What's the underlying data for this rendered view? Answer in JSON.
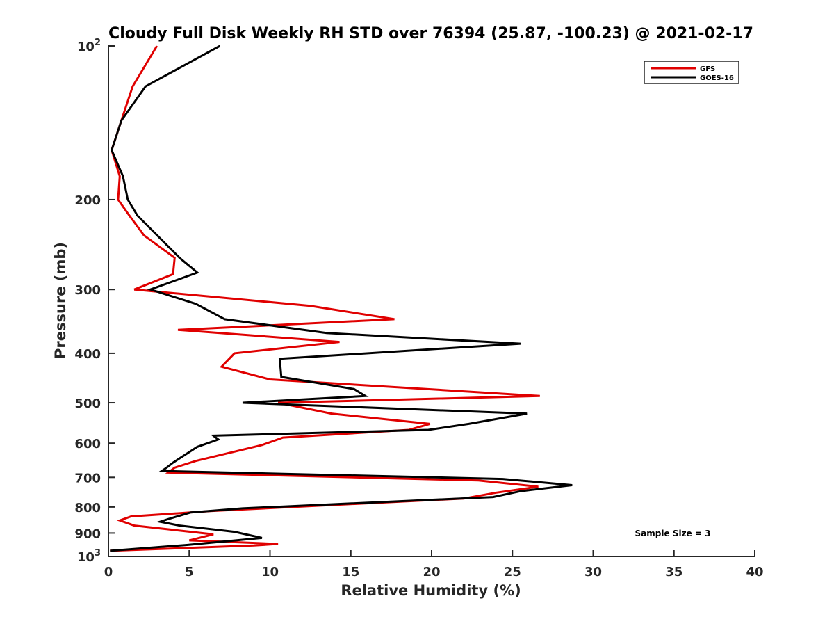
{
  "chart_data": {
    "type": "line",
    "title": "Cloudy Full Disk Weekly RH STD over 76394 (25.87, -100.23) @ 2021-02-17",
    "xlabel": "Relative Humidity (%)",
    "ylabel": "Pressure (mb)",
    "xlim": [
      0,
      40
    ],
    "ylim": [
      100,
      1000
    ],
    "y_scale": "log",
    "y_reversed": true,
    "grid": false,
    "legend_position": "top-right",
    "x_ticks": [
      "0",
      "5",
      "10",
      "15",
      "20",
      "25",
      "30",
      "35",
      "40"
    ],
    "y_ticks": [
      {
        "value": 100,
        "base": "10",
        "sup": "2"
      },
      {
        "value": 200,
        "label": "200"
      },
      {
        "value": 300,
        "label": "300"
      },
      {
        "value": 400,
        "label": "400"
      },
      {
        "value": 500,
        "label": "500"
      },
      {
        "value": 600,
        "label": "600"
      },
      {
        "value": 700,
        "label": "700"
      },
      {
        "value": 800,
        "label": "800"
      },
      {
        "value": 900,
        "label": "900"
      },
      {
        "value": 1000,
        "base": "10",
        "sup": "3"
      }
    ],
    "annotation": "Sample Size = 3",
    "series": [
      {
        "name": "GFS",
        "color": "#e00000",
        "points": [
          [
            3.0,
            100
          ],
          [
            1.5,
            120
          ],
          [
            0.8,
            140
          ],
          [
            0.2,
            160
          ],
          [
            0.7,
            180
          ],
          [
            0.6,
            200
          ],
          [
            1.3,
            215
          ],
          [
            2.2,
            235
          ],
          [
            4.1,
            260
          ],
          [
            4.0,
            280
          ],
          [
            1.6,
            300
          ],
          [
            12.5,
            323
          ],
          [
            17.7,
            343
          ],
          [
            4.3,
            360
          ],
          [
            14.3,
            380
          ],
          [
            7.8,
            400
          ],
          [
            7.0,
            425
          ],
          [
            10.0,
            450
          ],
          [
            26.7,
            485
          ],
          [
            10.5,
            500
          ],
          [
            13.8,
            525
          ],
          [
            19.9,
            550
          ],
          [
            18.6,
            565
          ],
          [
            10.8,
            585
          ],
          [
            9.5,
            605
          ],
          [
            5.4,
            650
          ],
          [
            4.1,
            670
          ],
          [
            3.7,
            685
          ],
          [
            22.9,
            710
          ],
          [
            26.6,
            730
          ],
          [
            24.0,
            750
          ],
          [
            22.0,
            770
          ],
          [
            6.3,
            815
          ],
          [
            1.4,
            835
          ],
          [
            0.7,
            850
          ],
          [
            1.6,
            870
          ],
          [
            6.5,
            905
          ],
          [
            5.0,
            930
          ],
          [
            10.5,
            945
          ],
          [
            9.0,
            952
          ],
          [
            0.1,
            975
          ]
        ]
      },
      {
        "name": "GOES-16",
        "color": "#000000",
        "points": [
          [
            6.9,
            100
          ],
          [
            2.3,
            120
          ],
          [
            0.8,
            140
          ],
          [
            0.2,
            160
          ],
          [
            0.9,
            180
          ],
          [
            1.2,
            200
          ],
          [
            1.8,
            215
          ],
          [
            4.4,
            260
          ],
          [
            5.5,
            278
          ],
          [
            2.6,
            300
          ],
          [
            5.4,
            320
          ],
          [
            7.2,
            343
          ],
          [
            13.5,
            365
          ],
          [
            25.5,
            383
          ],
          [
            10.6,
            410
          ],
          [
            10.7,
            445
          ],
          [
            15.2,
            470
          ],
          [
            15.9,
            485
          ],
          [
            8.3,
            500
          ],
          [
            25.9,
            525
          ],
          [
            22.3,
            550
          ],
          [
            19.8,
            565
          ],
          [
            6.5,
            580
          ],
          [
            6.8,
            590
          ],
          [
            5.5,
            610
          ],
          [
            4.0,
            655
          ],
          [
            3.6,
            670
          ],
          [
            3.3,
            680
          ],
          [
            24.4,
            705
          ],
          [
            28.7,
            725
          ],
          [
            25.5,
            745
          ],
          [
            23.8,
            765
          ],
          [
            8.3,
            805
          ],
          [
            5.1,
            820
          ],
          [
            3.7,
            845
          ],
          [
            3.2,
            855
          ],
          [
            4.4,
            870
          ],
          [
            7.8,
            895
          ],
          [
            9.5,
            920
          ],
          [
            4.8,
            950
          ],
          [
            0.1,
            975
          ]
        ]
      }
    ]
  }
}
